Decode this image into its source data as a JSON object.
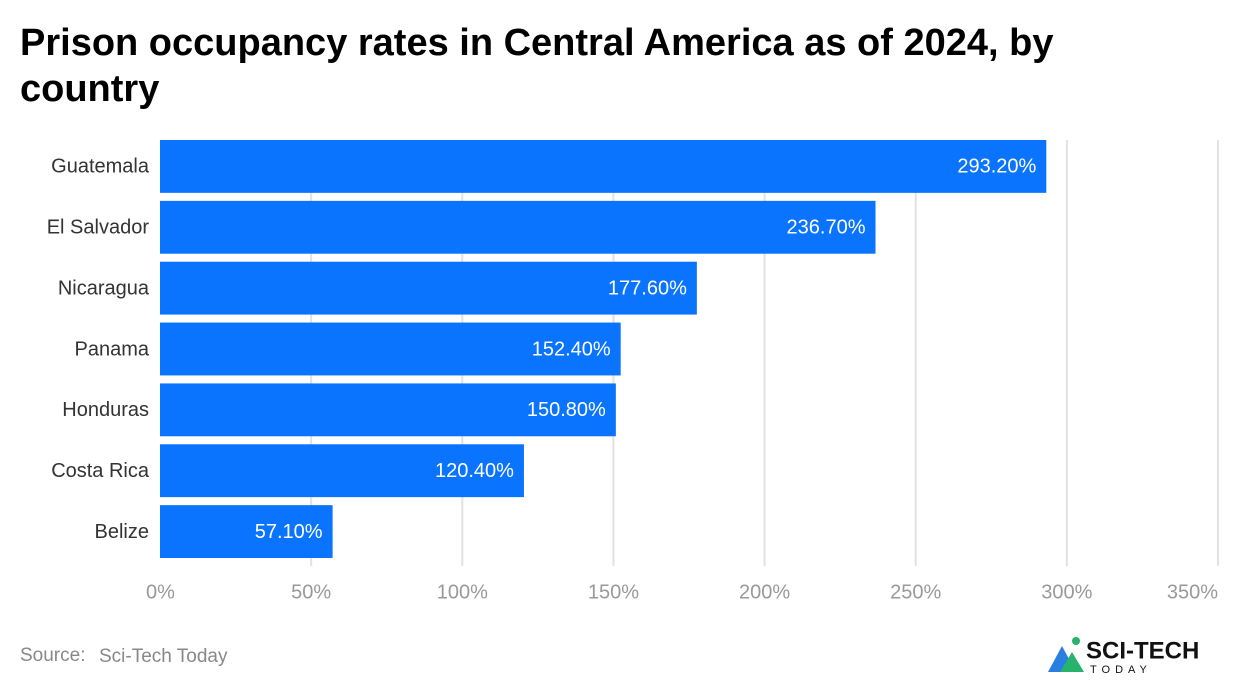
{
  "chart_data": {
    "type": "bar",
    "orientation": "horizontal",
    "title": "Prison occupancy rates in Central America as of 2024, by country",
    "categories": [
      "Guatemala",
      "El Salvador",
      "Nicaragua",
      "Panama",
      "Honduras",
      "Costa Rica",
      "Belize"
    ],
    "values": [
      293.2,
      236.7,
      177.6,
      152.4,
      150.8,
      120.4,
      57.1
    ],
    "value_labels": [
      "293.20%",
      "236.70%",
      "177.60%",
      "152.40%",
      "150.80%",
      "120.40%",
      "57.10%"
    ],
    "color": "#0a74ff",
    "xlim": [
      0,
      350
    ],
    "xticks": [
      {
        "value": 0,
        "label": "0%"
      },
      {
        "value": 50,
        "label": "50%"
      },
      {
        "value": 100,
        "label": "100%"
      },
      {
        "value": 150,
        "label": "150%"
      },
      {
        "value": 200,
        "label": "200%"
      },
      {
        "value": 250,
        "label": "250%"
      },
      {
        "value": 300,
        "label": "300%"
      },
      {
        "value": 350,
        "label": "350%"
      }
    ],
    "grid": true
  },
  "footer": {
    "source_label": "Source:",
    "source": "Sci-Tech Today",
    "logo_main": "SCI-TECH",
    "logo_sub": "TODAY"
  }
}
